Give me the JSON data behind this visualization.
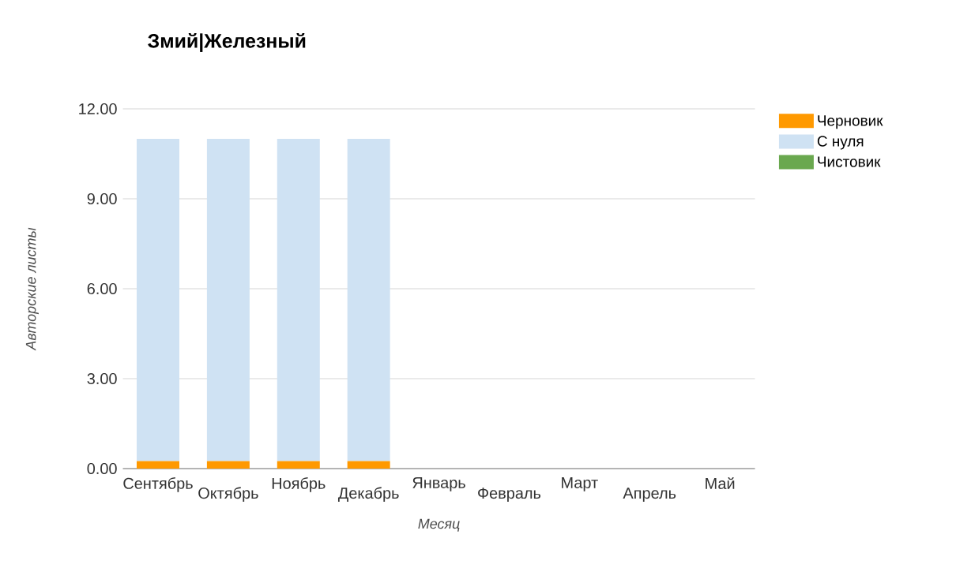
{
  "chart_data": {
    "type": "bar",
    "title": "Змий|Железный",
    "xlabel": "Месяц",
    "ylabel": "Авторские листы",
    "categories": [
      "Сентябрь",
      "Октябрь",
      "Ноябрь",
      "Декабрь",
      "Январь",
      "Февраль",
      "Март",
      "Апрель",
      "Май"
    ],
    "stacked": true,
    "series": [
      {
        "name": "Черновик",
        "color": "#ff9900",
        "values": [
          0.25,
          0.25,
          0.25,
          0.25,
          0,
          0,
          0,
          0,
          0
        ]
      },
      {
        "name": "С нуля",
        "color": "#cfe2f3",
        "values": [
          10.75,
          10.75,
          10.75,
          10.75,
          0,
          0,
          0,
          0,
          0
        ]
      },
      {
        "name": "Чистовик",
        "color": "#6aa84f",
        "values": [
          0,
          0,
          0,
          0,
          0,
          0,
          0,
          0,
          0
        ]
      }
    ],
    "ylim": [
      0,
      12
    ],
    "yticks": [
      {
        "value": 0,
        "label": "0.00"
      },
      {
        "value": 3,
        "label": "3.00"
      },
      {
        "value": 6,
        "label": "6.00"
      },
      {
        "value": 9,
        "label": "9.00"
      },
      {
        "value": 12,
        "label": "12.00"
      }
    ],
    "grid": "y",
    "legend": "right"
  }
}
